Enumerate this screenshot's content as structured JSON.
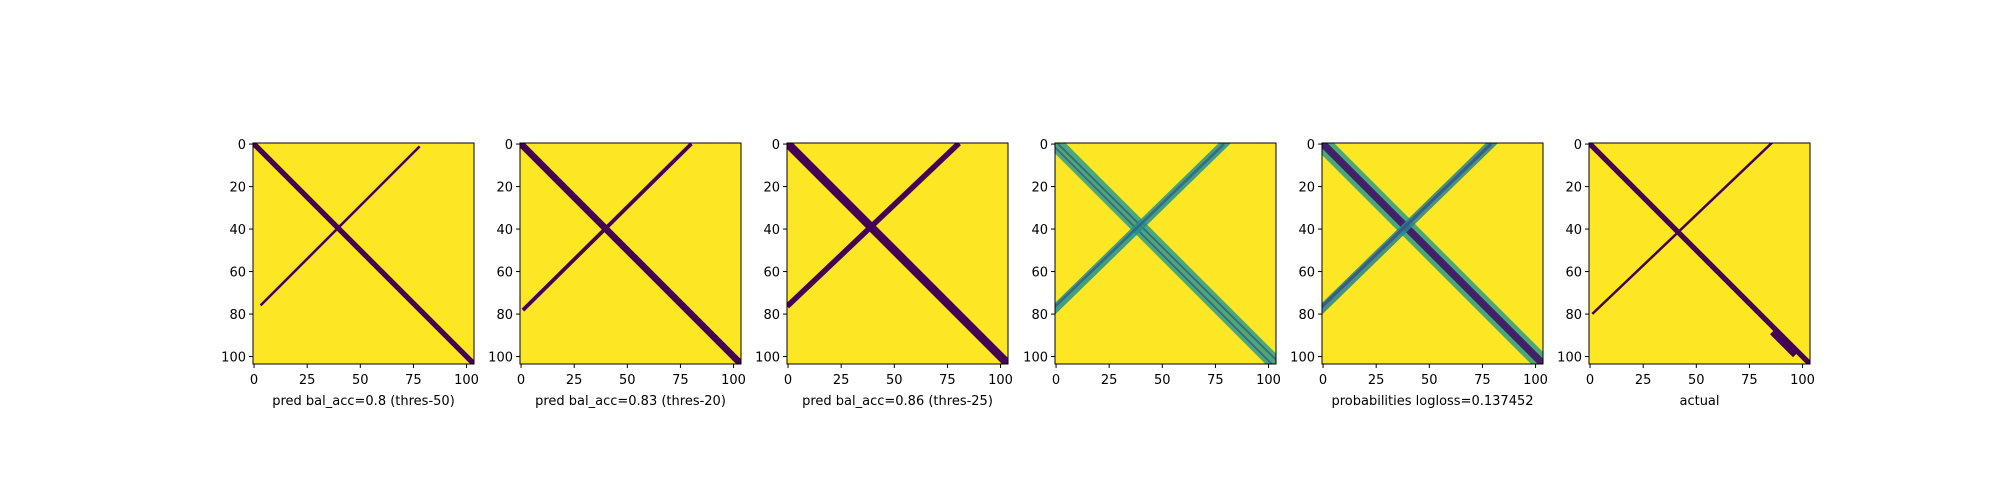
{
  "colors": {
    "background": "#fde725",
    "mask": "#440154",
    "viridis_mid_1": "#21918c",
    "viridis_mid_2": "#3b528b",
    "viridis_light": "#5ec962"
  },
  "chart_data": [
    {
      "type": "heatmap",
      "colormap": "viridis",
      "title": "",
      "xlabel": "pred bal_acc=0.8 (thres-50)",
      "ylabel": "",
      "x_ticks": [
        "0",
        "25",
        "50",
        "75",
        "100"
      ],
      "y_ticks": [
        "0",
        "20",
        "40",
        "60",
        "80",
        "100"
      ],
      "xlim": [
        0,
        104
      ],
      "ylim": [
        104,
        0
      ],
      "matrix_size": 104,
      "segments": [
        {
          "desc": "main diagonal",
          "x1": 0,
          "y1": 0,
          "x2": 104,
          "y2": 104,
          "width": 2.5,
          "value": 0
        },
        {
          "desc": "anti-diagonal band",
          "x1": 4,
          "y1": 76,
          "x2": 78,
          "y2": 2,
          "width": 1.2,
          "value": 0
        }
      ]
    },
    {
      "type": "heatmap",
      "colormap": "viridis",
      "title": "",
      "xlabel": "pred bal_acc=0.83 (thres-20)",
      "ylabel": "",
      "x_ticks": [
        "0",
        "25",
        "50",
        "75",
        "100"
      ],
      "y_ticks": [
        "0",
        "20",
        "40",
        "60",
        "80",
        "100"
      ],
      "xlim": [
        0,
        104
      ],
      "ylim": [
        104,
        0
      ],
      "matrix_size": 104,
      "segments": [
        {
          "desc": "main diagonal",
          "x1": 0,
          "y1": 0,
          "x2": 104,
          "y2": 104,
          "width": 3.2,
          "value": 0
        },
        {
          "desc": "anti-diagonal band",
          "x1": 2,
          "y1": 78,
          "x2": 80,
          "y2": 1,
          "width": 1.8,
          "value": 0
        }
      ]
    },
    {
      "type": "heatmap",
      "colormap": "viridis",
      "title": "",
      "xlabel": "pred bal_acc=0.86 (thres-25)",
      "ylabel": "",
      "x_ticks": [
        "0",
        "25",
        "50",
        "75",
        "100"
      ],
      "y_ticks": [
        "0",
        "20",
        "40",
        "60",
        "80",
        "100"
      ],
      "xlim": [
        0,
        104
      ],
      "ylim": [
        104,
        0
      ],
      "matrix_size": 104,
      "segments": [
        {
          "desc": "main diagonal",
          "x1": 0,
          "y1": 0,
          "x2": 104,
          "y2": 104,
          "width": 4,
          "value": 0
        },
        {
          "desc": "anti-diagonal band",
          "x1": 1,
          "y1": 76,
          "x2": 80,
          "y2": 1,
          "width": 2.6,
          "value": 0
        }
      ]
    },
    {
      "type": "heatmap",
      "colormap": "viridis",
      "title": "",
      "xlabel": "",
      "ylabel": "",
      "x_ticks": [
        "0",
        "25",
        "50",
        "75",
        "100"
      ],
      "y_ticks": [
        "0",
        "20",
        "40",
        "60",
        "80",
        "100"
      ],
      "xlim": [
        0,
        104
      ],
      "ylim": [
        104,
        0
      ],
      "matrix_size": 104,
      "segments": [
        {
          "desc": "main diagonal",
          "x1": 0,
          "y1": 0,
          "x2": 104,
          "y2": 104,
          "width": 7,
          "value": 0.55
        },
        {
          "desc": "main diagonal line a",
          "x1": 1,
          "y1": 0,
          "x2": 104,
          "y2": 102,
          "width": 0.9,
          "value": 0.3
        },
        {
          "desc": "main diagonal line b",
          "x1": 0,
          "y1": 2,
          "x2": 102,
          "y2": 104,
          "width": 0.9,
          "value": 0.3
        },
        {
          "desc": "anti-diagonal band",
          "x1": 0,
          "y1": 78,
          "x2": 80,
          "y2": 0,
          "width": 4,
          "value": 0.5
        },
        {
          "desc": "anti-diagonal core",
          "x1": 0,
          "y1": 77,
          "x2": 79,
          "y2": 1,
          "width": 1.2,
          "value": 0.3
        }
      ]
    },
    {
      "type": "heatmap",
      "colormap": "viridis",
      "title": "",
      "xlabel": "probabilities logloss=0.137452",
      "ylabel": "",
      "x_ticks": [
        "0",
        "25",
        "50",
        "75",
        "100"
      ],
      "y_ticks": [
        "0",
        "20",
        "40",
        "60",
        "80",
        "100"
      ],
      "xlim": [
        0,
        104
      ],
      "ylim": [
        104,
        0
      ],
      "matrix_size": 104,
      "segments": [
        {
          "desc": "main diagonal halo",
          "x1": 0,
          "y1": 0,
          "x2": 104,
          "y2": 104,
          "width": 8,
          "value": 0.55
        },
        {
          "desc": "main diagonal",
          "x1": 0,
          "y1": 0,
          "x2": 104,
          "y2": 104,
          "width": 3.5,
          "value": 0.1
        },
        {
          "desc": "anti-diagonal band",
          "x1": 0,
          "y1": 78,
          "x2": 80,
          "y2": 0,
          "width": 4,
          "value": 0.45
        },
        {
          "desc": "anti-diagonal core",
          "x1": 0,
          "y1": 77,
          "x2": 79,
          "y2": 1,
          "width": 1.5,
          "value": 0.25
        }
      ]
    },
    {
      "type": "heatmap",
      "colormap": "viridis",
      "title": "",
      "xlabel": "actual",
      "ylabel": "",
      "x_ticks": [
        "0",
        "25",
        "50",
        "75",
        "100"
      ],
      "y_ticks": [
        "0",
        "20",
        "40",
        "60",
        "80",
        "100"
      ],
      "xlim": [
        0,
        104
      ],
      "ylim": [
        104,
        0
      ],
      "matrix_size": 104,
      "segments": [
        {
          "desc": "main diagonal",
          "x1": 0,
          "y1": 0,
          "x2": 104,
          "y2": 104,
          "width": 2.5,
          "value": 0
        },
        {
          "desc": "anti-diagonal band",
          "x1": 2,
          "y1": 80,
          "x2": 86,
          "y2": 0,
          "width": 1.2,
          "value": 0
        },
        {
          "desc": "contact cluster near 90",
          "x1": 88,
          "y1": 90,
          "x2": 96,
          "y2": 98,
          "width": 4,
          "value": 0
        }
      ]
    }
  ]
}
